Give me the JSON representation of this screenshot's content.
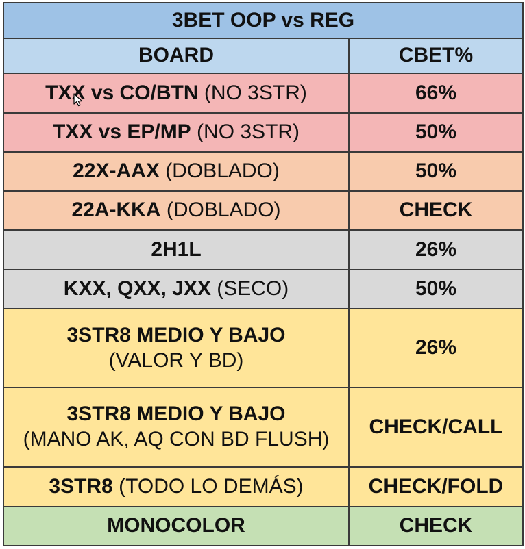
{
  "title": "3BET OOP vs REG",
  "header": {
    "board": "BOARD",
    "cbet": "CBET%"
  },
  "rows": [
    {
      "board_bold": "TXX vs CO/BTN",
      "board_note": "(NO 3STR)",
      "cbet": "66%"
    },
    {
      "board_bold": "TXX vs EP/MP",
      "board_note": "(NO 3STR)",
      "cbet": "50%"
    },
    {
      "board_bold": "22X-AAX",
      "board_note": "(DOBLADO)",
      "cbet": "50%"
    },
    {
      "board_bold": "22A-KKA",
      "board_note": "(DOBLADO)",
      "cbet": "CHECK"
    },
    {
      "board_bold": "2H1L",
      "cbet": "26%"
    },
    {
      "board_bold": "KXX, QXX, JXX",
      "board_note": "(SECO)",
      "cbet": "50%"
    },
    {
      "board_bold": "3STR8 MEDIO Y BAJO",
      "board_note": "(VALOR Y BD)",
      "cbet": "26%"
    },
    {
      "board_bold": "3STR8 MEDIO Y BAJO",
      "board_note": "(MANO AK, AQ CON BD FLUSH)",
      "cbet": "CHECK/CALL"
    },
    {
      "board_bold": "3STR8",
      "board_note": "(TODO LO DEMÁS)",
      "cbet": "CHECK/FOLD"
    },
    {
      "board_bold": "MONOCOLOR",
      "cbet": "CHECK"
    }
  ],
  "colors": {
    "title_bg": "#9ec2e6",
    "header_bg": "#bdd7ee",
    "red_bg": "#f4b6b6",
    "peach_bg": "#f8cbad",
    "grey_bg": "#d9d9d9",
    "yellow_bg": "#ffe599",
    "green_bg": "#c5e0b4"
  },
  "icons": {
    "cursor": "mouse-pointer-icon"
  }
}
